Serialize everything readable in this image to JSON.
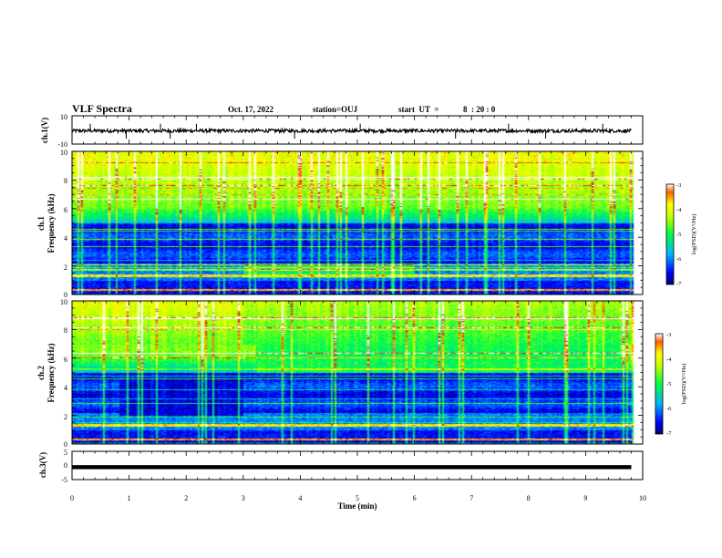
{
  "header": {
    "title": "VLF Spectra",
    "date": "Oct. 17, 2022",
    "station": "station=OUJ",
    "start_label": "start  UT  =",
    "start_time": "8  : 20 : 0"
  },
  "chart_data": [
    {
      "id": "ch1-waveform",
      "type": "line",
      "ylabel": "ch.1(V)",
      "ylim": [
        -10,
        10
      ],
      "yticks": [
        "10",
        "-10"
      ],
      "xlim": [
        0,
        10
      ],
      "signal_center": -0.6,
      "signal_amplitude": 1.2,
      "spikes_x": [
        0.32,
        0.95,
        1.55,
        1.72,
        2.18,
        3.9,
        5.05,
        6.72,
        7.65,
        8.3,
        9.3
      ]
    },
    {
      "id": "ch1-spectrogram",
      "type": "heatmap",
      "ylabel_top": "ch.1",
      "ylabel": "Frequency (kHz)",
      "xlim": [
        0,
        10
      ],
      "ylim": [
        0,
        10
      ],
      "yticks": [
        "0",
        "2",
        "4",
        "6",
        "8",
        "10"
      ],
      "data_end_x": 9.8,
      "colorbar": {
        "label": "log(PSD)(V²/Hz)",
        "range": [
          -7,
          -3
        ],
        "ticks": [
          "-3",
          "-4",
          "-5",
          "-6",
          "-7"
        ]
      }
    },
    {
      "id": "ch2-spectrogram",
      "type": "heatmap",
      "ylabel_top": "ch.2",
      "ylabel": "Frequency (kHz)",
      "xlim": [
        0,
        10
      ],
      "ylim": [
        0,
        10
      ],
      "yticks": [
        "0",
        "2",
        "4",
        "6",
        "8",
        "10"
      ],
      "data_end_x": 9.8,
      "colorbar": {
        "label": "log(PSD)(V²/Hz)",
        "range": [
          -7,
          -3
        ],
        "ticks": [
          "-3",
          "-4",
          "-5",
          "-6",
          "-7"
        ]
      }
    },
    {
      "id": "ch3-waveform",
      "type": "line",
      "ylabel": "ch.3(V)",
      "ylim": [
        -5,
        5
      ],
      "yticks": [
        "5",
        "0",
        "-5"
      ],
      "xlim": [
        0,
        10
      ],
      "xlabel": "Time (min)",
      "xticks": [
        "0",
        "1",
        "2",
        "3",
        "4",
        "5",
        "6",
        "7",
        "8",
        "9",
        "10"
      ],
      "signal_center": -0.6,
      "data_end_x": 9.8
    }
  ]
}
